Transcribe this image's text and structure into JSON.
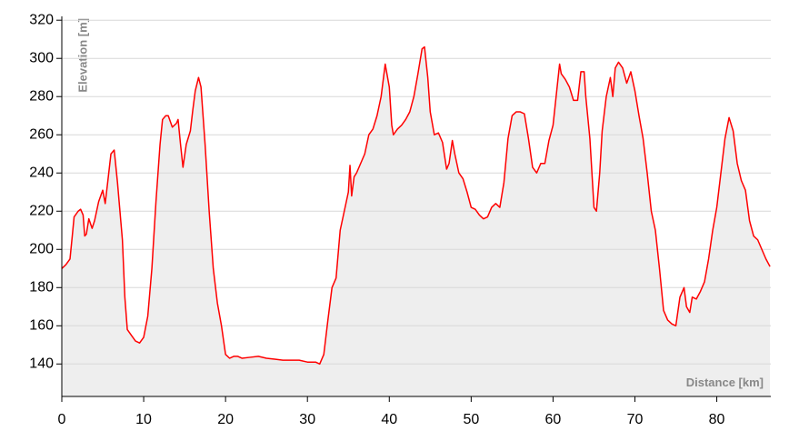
{
  "chart_data": {
    "type": "area",
    "x_label": "Distance [km]",
    "y_label": "Elevation [m]",
    "x": [
      0,
      0.5,
      1,
      1.3,
      1.5,
      2,
      2.3,
      2.6,
      2.8,
      3,
      3.3,
      3.7,
      4,
      4.5,
      5,
      5.3,
      5.6,
      6,
      6.4,
      6.8,
      7,
      7.4,
      7.7,
      8,
      8.5,
      9,
      9.5,
      10,
      10.5,
      11,
      11.5,
      12,
      12.3,
      12.7,
      13,
      13.5,
      14,
      14.2,
      14.5,
      14.8,
      15.2,
      15.7,
      16,
      16.3,
      16.7,
      17,
      17.5,
      18,
      18.5,
      19,
      19.5,
      20,
      20.5,
      21,
      21.5,
      22,
      23,
      24,
      25,
      26,
      27,
      28,
      29,
      30,
      31,
      31.5,
      32,
      32.5,
      33,
      33.5,
      34,
      34.5,
      35,
      35.2,
      35.4,
      35.7,
      36,
      37,
      37.5,
      38,
      38.5,
      39,
      39.5,
      40,
      40.3,
      40.5,
      41,
      41.5,
      42,
      42.5,
      43,
      43.5,
      44,
      44.3,
      44.7,
      45,
      45.5,
      46,
      46.5,
      47,
      47.3,
      47.7,
      48,
      48.5,
      49,
      49.5,
      50,
      50.5,
      51,
      51.5,
      52,
      52.5,
      53,
      53.5,
      54,
      54.5,
      55,
      55.5,
      56,
      56.5,
      57,
      57.5,
      58,
      58.5,
      59,
      59.5,
      60,
      60.5,
      60.8,
      61,
      61.5,
      62,
      62.5,
      63,
      63.4,
      63.8,
      64,
      64.5,
      65,
      65.3,
      65.7,
      66,
      66.5,
      67,
      67.3,
      67.6,
      68,
      68.5,
      69,
      69.5,
      70,
      70.5,
      71,
      71.5,
      72,
      72.5,
      73,
      73.5,
      74,
      74.5,
      75,
      75.5,
      76,
      76.3,
      76.7,
      77,
      77.5,
      78,
      78.5,
      79,
      79.5,
      80,
      80.5,
      81,
      81.5,
      82,
      82.5,
      83,
      83.5,
      84,
      84.5,
      85,
      85.5,
      86,
      86.5
    ],
    "values": [
      190,
      192,
      195,
      208,
      217,
      220,
      221,
      218,
      207,
      208,
      216,
      211,
      215,
      225,
      231,
      224,
      235,
      250,
      252,
      235,
      225,
      205,
      175,
      158,
      155,
      152,
      151,
      154,
      165,
      190,
      225,
      255,
      268,
      270,
      270,
      264,
      266,
      268,
      255,
      243,
      255,
      262,
      273,
      283,
      290,
      285,
      255,
      220,
      190,
      172,
      160,
      145,
      143,
      144,
      144,
      143,
      143.5,
      144,
      143,
      142.5,
      142,
      142,
      142,
      141,
      141,
      140,
      145,
      163,
      180,
      185,
      210,
      220,
      230,
      244,
      228,
      238,
      240,
      250,
      260,
      263,
      270,
      280,
      297,
      285,
      265,
      260,
      263,
      265,
      268,
      272,
      280,
      292,
      305,
      306,
      290,
      272,
      260,
      261,
      256,
      242,
      245,
      257,
      250,
      240,
      237,
      230,
      222,
      221,
      218,
      216,
      217,
      222,
      224,
      222,
      235,
      258,
      270,
      272,
      272,
      271,
      258,
      243,
      240,
      245,
      245,
      257,
      265,
      285,
      297,
      292,
      289,
      285,
      278,
      278,
      293,
      293,
      280,
      258,
      222,
      220,
      240,
      262,
      280,
      290,
      280,
      295,
      298,
      295,
      287,
      293,
      283,
      270,
      258,
      240,
      220,
      210,
      190,
      168,
      163,
      161,
      160,
      175,
      180,
      170,
      167,
      175,
      174,
      178,
      183,
      195,
      210,
      222,
      240,
      258,
      269,
      262,
      245,
      236,
      231,
      215,
      207,
      205,
      200,
      195,
      191
    ],
    "color": "#ff0000",
    "fill": "#eeeeee",
    "xlim": [
      0,
      86.6
    ],
    "xticks": [
      0,
      10,
      20,
      30,
      40,
      50,
      60,
      70,
      80
    ],
    "ylim": [
      123,
      322
    ],
    "yticks": [
      140,
      160,
      180,
      200,
      220,
      240,
      260,
      280,
      300,
      320
    ],
    "grid": true
  }
}
